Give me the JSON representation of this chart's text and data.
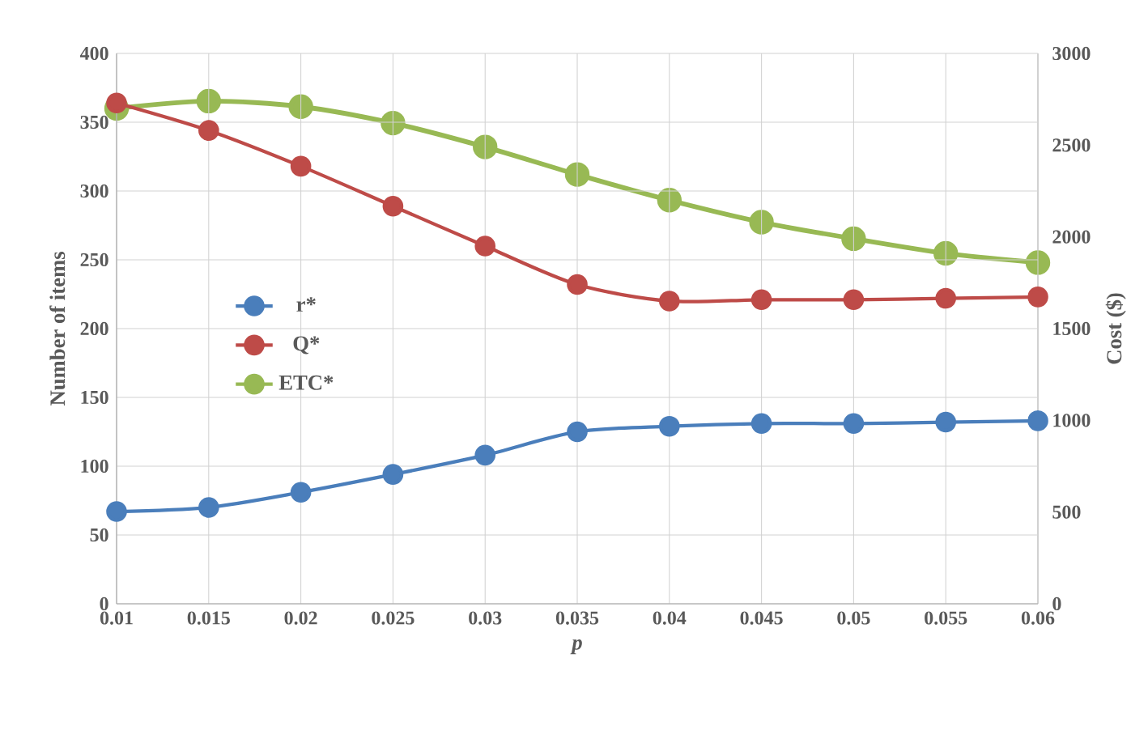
{
  "chart_data": {
    "type": "line",
    "categories": [
      "0.01",
      "0.015",
      "0.02",
      "0.025",
      "0.03",
      "0.035",
      "0.04",
      "0.045",
      "0.05",
      "0.055",
      "0.06"
    ],
    "series": [
      {
        "name": "r*",
        "color": "#4a7ebb",
        "values": [
          67,
          70,
          81,
          94,
          108,
          125,
          129,
          131,
          131,
          132,
          133
        ]
      },
      {
        "name": "Q*",
        "color": "#be4b48",
        "values": [
          364,
          344,
          318,
          289,
          260,
          232,
          220,
          221,
          221,
          222,
          223
        ]
      },
      {
        "name": "ETC*",
        "color": "#98b954",
        "axis": "y2",
        "values": [
          2700,
          2740,
          2710,
          2620,
          2490,
          2340,
          2200,
          2080,
          1990,
          1910,
          1860
        ]
      }
    ],
    "xlabel": "p",
    "ylabel": "Number of items",
    "y2label": "Cost ($)",
    "ylim": [
      0,
      400
    ],
    "yticks": [
      0,
      50,
      100,
      150,
      200,
      250,
      300,
      350,
      400
    ],
    "y2lim": [
      0,
      3000
    ],
    "y2ticks": [
      0,
      500,
      1000,
      1500,
      2000,
      2500,
      3000
    ],
    "grid": true,
    "legend": "left",
    "marker": "circle",
    "line_style": "solid"
  }
}
